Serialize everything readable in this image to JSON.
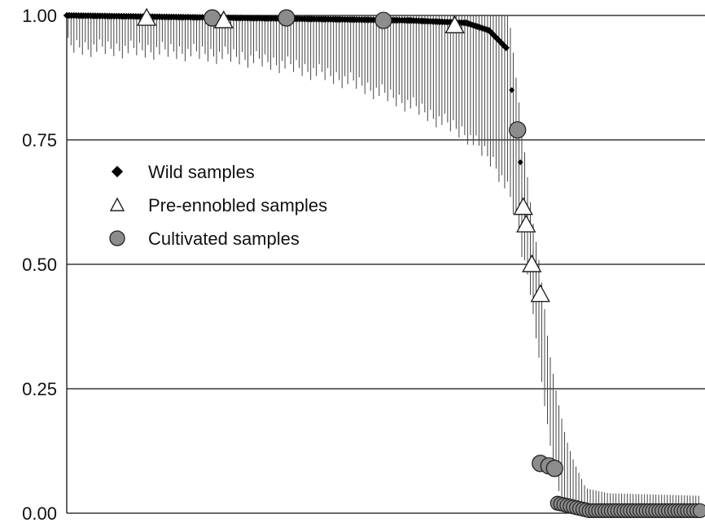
{
  "chart_data": {
    "type": "scatter",
    "title": "",
    "xlabel": "",
    "ylabel": "",
    "ylim": [
      0,
      1
    ],
    "xlim": [
      0,
      222
    ],
    "grid": "horizontal",
    "yticks": [
      {
        "value": 0.0,
        "label": "0.00"
      },
      {
        "value": 0.25,
        "label": "0.25"
      },
      {
        "value": 0.5,
        "label": "0.50"
      },
      {
        "value": 0.75,
        "label": "0.75"
      },
      {
        "value": 1.0,
        "label": "1.00"
      }
    ],
    "legend": {
      "placement": "upper-left",
      "entries": [
        {
          "label": "Wild samples",
          "marker": "diamond",
          "color": "#000000"
        },
        {
          "label": "Pre-ennobled samples",
          "marker": "triangle",
          "color": "#ffffff"
        },
        {
          "label": "Cultivated samples",
          "marker": "circle",
          "color": "#8c8c8c"
        }
      ]
    },
    "error_bars": {
      "count": 222,
      "profile": [
        {
          "x": 0,
          "lo": 0.955
        },
        {
          "x": 20,
          "lo": 0.95
        },
        {
          "x": 40,
          "lo": 0.945
        },
        {
          "x": 60,
          "lo": 0.935
        },
        {
          "x": 80,
          "lo": 0.915
        },
        {
          "x": 100,
          "lo": 0.885
        },
        {
          "x": 120,
          "lo": 0.84
        },
        {
          "x": 140,
          "lo": 0.78
        },
        {
          "x": 150,
          "lo": 0.72
        },
        {
          "x": 155,
          "lo": 0.66
        },
        {
          "x": 158,
          "lo": 0.6
        },
        {
          "x": 160,
          "lo": 0.53
        },
        {
          "x": 162,
          "lo": 0.47
        },
        {
          "x": 164,
          "lo": 0.38
        },
        {
          "x": 166,
          "lo": 0.29
        },
        {
          "x": 168,
          "lo": 0.2
        },
        {
          "x": 170,
          "lo": 0.12
        },
        {
          "x": 172,
          "lo": 0.06
        },
        {
          "x": 174,
          "lo": 0.02
        },
        {
          "x": 176,
          "lo": 0.0
        },
        {
          "x": 222,
          "lo": 0.0
        }
      ],
      "upper_profile": [
        {
          "x": 150,
          "hi": 1.0
        },
        {
          "x": 155,
          "hi": 1.0
        },
        {
          "x": 160,
          "hi": 0.75
        },
        {
          "x": 163,
          "hi": 0.6
        },
        {
          "x": 166,
          "hi": 0.49
        },
        {
          "x": 169,
          "hi": 0.33
        },
        {
          "x": 172,
          "hi": 0.23
        },
        {
          "x": 175,
          "hi": 0.15
        },
        {
          "x": 178,
          "hi": 0.1
        },
        {
          "x": 182,
          "hi": 0.05
        },
        {
          "x": 190,
          "hi": 0.04
        },
        {
          "x": 222,
          "hi": 0.035
        }
      ]
    },
    "series": [
      {
        "name": "Wild samples",
        "marker": "diamond",
        "segments": [
          {
            "x_from": 0,
            "x_to": 120,
            "y_from": 1.0,
            "y_to": 0.99
          },
          {
            "x_from": 120,
            "x_to": 140,
            "y_from": 0.99,
            "y_to": 0.985
          },
          {
            "x_from": 140,
            "x_to": 148,
            "y_from": 0.985,
            "y_to": 0.97
          },
          {
            "x_from": 148,
            "x_to": 154,
            "y_from": 0.97,
            "y_to": 0.935
          }
        ],
        "points": [
          {
            "x": 156,
            "y": 0.85
          },
          {
            "x": 159,
            "y": 0.705
          }
        ]
      },
      {
        "name": "Pre-ennobled samples",
        "marker": "triangle",
        "points": [
          {
            "x": 28,
            "y": 0.995
          },
          {
            "x": 55,
            "y": 0.99
          },
          {
            "x": 136,
            "y": 0.98
          },
          {
            "x": 160,
            "y": 0.615
          },
          {
            "x": 161,
            "y": 0.58
          },
          {
            "x": 163,
            "y": 0.5
          },
          {
            "x": 166,
            "y": 0.44
          }
        ]
      },
      {
        "name": "Cultivated samples",
        "marker": "circle",
        "points": [
          {
            "x": 51,
            "y": 0.995
          },
          {
            "x": 77,
            "y": 0.995
          },
          {
            "x": 111,
            "y": 0.99
          },
          {
            "x": 158,
            "y": 0.77
          },
          {
            "x": 166,
            "y": 0.1
          },
          {
            "x": 169,
            "y": 0.095
          },
          {
            "x": 171,
            "y": 0.09
          }
        ],
        "tail": {
          "x_from": 172,
          "x_to": 222,
          "y_from": 0.02,
          "y_to": 0.005,
          "count": 46
        }
      }
    ]
  }
}
